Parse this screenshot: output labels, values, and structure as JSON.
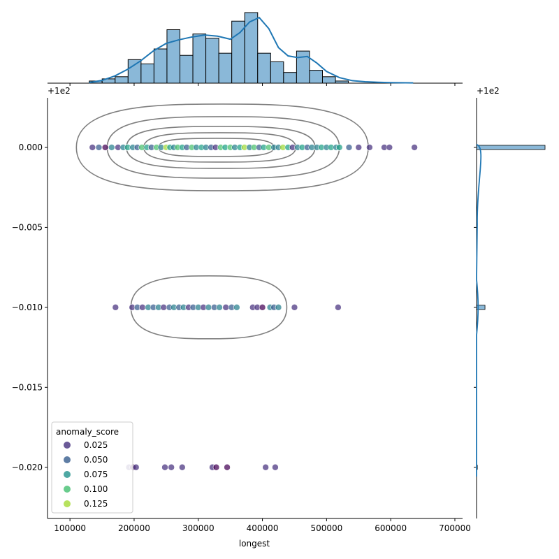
{
  "chart_data": {
    "type": "scatter",
    "subtype": "jointplot",
    "xlabel": "longest",
    "ylabel": "",
    "y_offset_text": "+1e2",
    "x_ticks": [
      100000,
      200000,
      300000,
      400000,
      500000,
      600000,
      700000
    ],
    "x_tick_labels": [
      "100000",
      "200000",
      "300000",
      "400000",
      "500000",
      "600000",
      "700000"
    ],
    "y_ticks": [
      0.0,
      -0.005,
      -0.01,
      -0.015,
      -0.02
    ],
    "y_tick_labels": [
      "0.000",
      "−0.005",
      "−0.010",
      "−0.015",
      "−0.020"
    ],
    "xlim": [
      65000,
      712000
    ],
    "ylim": [
      -0.0232,
      0.0031
    ],
    "legend": {
      "title": "anomaly_score",
      "position": "lower-left",
      "entries": [
        {
          "label": "0.025",
          "color": "#46317e"
        },
        {
          "label": "0.050",
          "color": "#365c8d"
        },
        {
          "label": "0.075",
          "color": "#22928c"
        },
        {
          "label": "0.100",
          "color": "#44bf70"
        },
        {
          "label": "0.125",
          "color": "#a5db36"
        }
      ]
    },
    "scatter_points": [
      {
        "x": 135000,
        "y": 0.0,
        "s": 0.02
      },
      {
        "x": 145000,
        "y": 0.0,
        "s": 0.04
      },
      {
        "x": 155000,
        "y": 0.0,
        "s": 0.01
      },
      {
        "x": 165000,
        "y": 0.0,
        "s": 0.07
      },
      {
        "x": 175000,
        "y": 0.0,
        "s": 0.03
      },
      {
        "x": 183000,
        "y": 0.0,
        "s": 0.06
      },
      {
        "x": 190000,
        "y": 0.0,
        "s": 0.1
      },
      {
        "x": 198000,
        "y": 0.0,
        "s": 0.08
      },
      {
        "x": 205000,
        "y": 0.0,
        "s": 0.04
      },
      {
        "x": 212000,
        "y": 0.0,
        "s": 0.11
      },
      {
        "x": 220000,
        "y": 0.0,
        "s": 0.09
      },
      {
        "x": 227000,
        "y": 0.0,
        "s": 0.05
      },
      {
        "x": 235000,
        "y": 0.0,
        "s": 0.12
      },
      {
        "x": 242000,
        "y": 0.0,
        "s": 0.07
      },
      {
        "x": 250000,
        "y": 0.0,
        "s": 0.13
      },
      {
        "x": 256000,
        "y": 0.0,
        "s": 0.1
      },
      {
        "x": 262000,
        "y": 0.0,
        "s": 0.06
      },
      {
        "x": 268000,
        "y": 0.0,
        "s": 0.11
      },
      {
        "x": 275000,
        "y": 0.0,
        "s": 0.09
      },
      {
        "x": 282000,
        "y": 0.0,
        "s": 0.04
      },
      {
        "x": 290000,
        "y": 0.0,
        "s": 0.12
      },
      {
        "x": 297000,
        "y": 0.0,
        "s": 0.08
      },
      {
        "x": 305000,
        "y": 0.0,
        "s": 0.1
      },
      {
        "x": 312000,
        "y": 0.0,
        "s": 0.07
      },
      {
        "x": 320000,
        "y": 0.0,
        "s": 0.05
      },
      {
        "x": 327000,
        "y": 0.0,
        "s": 0.02
      },
      {
        "x": 335000,
        "y": 0.0,
        "s": 0.11
      },
      {
        "x": 342000,
        "y": 0.0,
        "s": 0.09
      },
      {
        "x": 350000,
        "y": 0.0,
        "s": 0.12
      },
      {
        "x": 357000,
        "y": 0.0,
        "s": 0.06
      },
      {
        "x": 365000,
        "y": 0.0,
        "s": 0.1
      },
      {
        "x": 372000,
        "y": 0.0,
        "s": 0.13
      },
      {
        "x": 380000,
        "y": 0.0,
        "s": 0.08
      },
      {
        "x": 387000,
        "y": 0.0,
        "s": 0.11
      },
      {
        "x": 395000,
        "y": 0.0,
        "s": 0.04
      },
      {
        "x": 402000,
        "y": 0.0,
        "s": 0.09
      },
      {
        "x": 410000,
        "y": 0.0,
        "s": 0.12
      },
      {
        "x": 418000,
        "y": 0.0,
        "s": 0.06
      },
      {
        "x": 425000,
        "y": 0.0,
        "s": 0.08
      },
      {
        "x": 432000,
        "y": 0.0,
        "s": 0.13
      },
      {
        "x": 440000,
        "y": 0.0,
        "s": 0.1
      },
      {
        "x": 447000,
        "y": 0.0,
        "s": 0.03
      },
      {
        "x": 455000,
        "y": 0.0,
        "s": 0.07
      },
      {
        "x": 462000,
        "y": 0.0,
        "s": 0.09
      },
      {
        "x": 470000,
        "y": 0.0,
        "s": 0.05
      },
      {
        "x": 477000,
        "y": 0.0,
        "s": 0.08
      },
      {
        "x": 485000,
        "y": 0.0,
        "s": 0.06
      },
      {
        "x": 492000,
        "y": 0.0,
        "s": 0.1
      },
      {
        "x": 500000,
        "y": 0.0,
        "s": 0.07
      },
      {
        "x": 507000,
        "y": 0.0,
        "s": 0.09
      },
      {
        "x": 515000,
        "y": 0.0,
        "s": 0.08
      },
      {
        "x": 520000,
        "y": 0.0,
        "s": 0.1
      },
      {
        "x": 535000,
        "y": 0.0,
        "s": 0.05
      },
      {
        "x": 550000,
        "y": 0.0,
        "s": 0.03
      },
      {
        "x": 567000,
        "y": 0.0,
        "s": 0.02
      },
      {
        "x": 590000,
        "y": 0.0,
        "s": 0.02
      },
      {
        "x": 598000,
        "y": 0.0,
        "s": 0.02
      },
      {
        "x": 637000,
        "y": 0.0,
        "s": 0.02
      },
      {
        "x": 171000,
        "y": -0.01,
        "s": 0.02
      },
      {
        "x": 197000,
        "y": -0.01,
        "s": 0.03
      },
      {
        "x": 205000,
        "y": -0.01,
        "s": 0.05
      },
      {
        "x": 213000,
        "y": -0.01,
        "s": 0.02
      },
      {
        "x": 222000,
        "y": -0.01,
        "s": 0.06
      },
      {
        "x": 230000,
        "y": -0.01,
        "s": 0.04
      },
      {
        "x": 238000,
        "y": -0.01,
        "s": 0.07
      },
      {
        "x": 246000,
        "y": -0.01,
        "s": 0.03
      },
      {
        "x": 255000,
        "y": -0.01,
        "s": 0.05
      },
      {
        "x": 262000,
        "y": -0.01,
        "s": 0.08
      },
      {
        "x": 270000,
        "y": -0.01,
        "s": 0.04
      },
      {
        "x": 277000,
        "y": -0.01,
        "s": 0.06
      },
      {
        "x": 285000,
        "y": -0.01,
        "s": 0.02
      },
      {
        "x": 292000,
        "y": -0.01,
        "s": 0.05
      },
      {
        "x": 300000,
        "y": -0.01,
        "s": 0.07
      },
      {
        "x": 308000,
        "y": -0.01,
        "s": 0.03
      },
      {
        "x": 316000,
        "y": -0.01,
        "s": 0.06
      },
      {
        "x": 325000,
        "y": -0.01,
        "s": 0.04
      },
      {
        "x": 333000,
        "y": -0.01,
        "s": 0.08
      },
      {
        "x": 343000,
        "y": -0.01,
        "s": 0.02
      },
      {
        "x": 352000,
        "y": -0.01,
        "s": 0.05
      },
      {
        "x": 360000,
        "y": -0.01,
        "s": 0.07
      },
      {
        "x": 385000,
        "y": -0.01,
        "s": 0.02
      },
      {
        "x": 392000,
        "y": -0.01,
        "s": 0.03
      },
      {
        "x": 400000,
        "y": -0.01,
        "s": 0.01
      },
      {
        "x": 412000,
        "y": -0.01,
        "s": 0.06
      },
      {
        "x": 418000,
        "y": -0.01,
        "s": 0.04
      },
      {
        "x": 425000,
        "y": -0.01,
        "s": 0.07
      },
      {
        "x": 450000,
        "y": -0.01,
        "s": 0.02
      },
      {
        "x": 518000,
        "y": -0.01,
        "s": 0.02
      },
      {
        "x": 192000,
        "y": -0.02,
        "s": 0.02
      },
      {
        "x": 198000,
        "y": -0.02,
        "s": 0.01
      },
      {
        "x": 203000,
        "y": -0.02,
        "s": 0.02
      },
      {
        "x": 248000,
        "y": -0.02,
        "s": 0.02
      },
      {
        "x": 258000,
        "y": -0.02,
        "s": 0.02
      },
      {
        "x": 275000,
        "y": -0.02,
        "s": 0.02
      },
      {
        "x": 322000,
        "y": -0.02,
        "s": 0.02
      },
      {
        "x": 328000,
        "y": -0.02,
        "s": 0.01
      },
      {
        "x": 345000,
        "y": -0.02,
        "s": 0.01
      },
      {
        "x": 405000,
        "y": -0.02,
        "s": 0.02
      },
      {
        "x": 420000,
        "y": -0.02,
        "s": 0.02
      }
    ],
    "marginal_x_hist": {
      "bin_start": 130000,
      "bin_width": 20200,
      "counts": [
        1,
        2,
        3,
        11,
        9,
        16,
        25,
        13,
        23,
        21,
        14,
        29,
        33,
        14,
        10,
        5,
        15,
        6,
        3,
        1,
        0,
        0,
        0,
        0
      ],
      "kde": [
        [
          130000,
          0.2
        ],
        [
          150000,
          1.0
        ],
        [
          170000,
          2.6
        ],
        [
          190000,
          5.0
        ],
        [
          210000,
          8.0
        ],
        [
          230000,
          11.6
        ],
        [
          250000,
          14.3
        ],
        [
          270000,
          15.6
        ],
        [
          290000,
          16.6
        ],
        [
          310000,
          17.3
        ],
        [
          330000,
          16.9
        ],
        [
          350000,
          15.8
        ],
        [
          365000,
          18.2
        ],
        [
          380000,
          22.0
        ],
        [
          395000,
          23.6
        ],
        [
          410000,
          19.6
        ],
        [
          425000,
          12.8
        ],
        [
          440000,
          9.8
        ],
        [
          455000,
          9.2
        ],
        [
          470000,
          9.6
        ],
        [
          485000,
          7.2
        ],
        [
          500000,
          4.2
        ],
        [
          520000,
          2.0
        ],
        [
          540000,
          0.9
        ],
        [
          560000,
          0.5
        ],
        [
          580000,
          0.3
        ],
        [
          600000,
          0.2
        ],
        [
          635000,
          0.1
        ]
      ]
    },
    "marginal_y_hist": {
      "bars": [
        {
          "y": 0.0,
          "count": 260
        },
        {
          "y": -0.01,
          "count": 32
        },
        {
          "y": -0.02,
          "count": 3
        }
      ]
    }
  }
}
